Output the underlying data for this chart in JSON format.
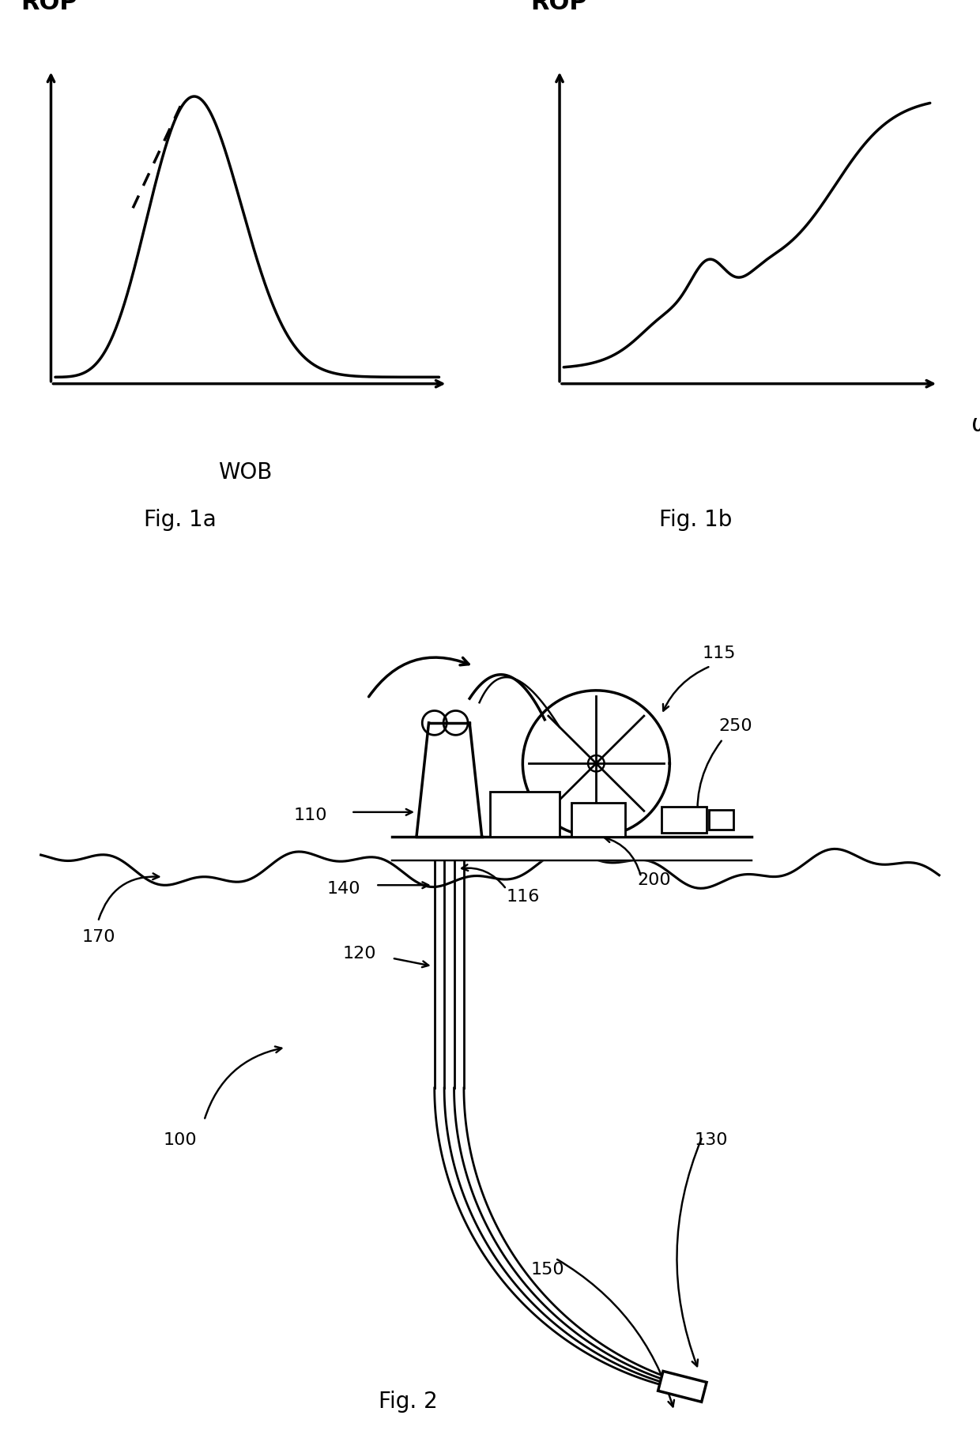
{
  "fig1a_title": "ROP",
  "fig1a_xlabel": "WOB",
  "fig1b_title": "ROP",
  "fig1b_xlabel": "ω",
  "fig1a_caption": "Fig. 1a",
  "fig1b_caption": "Fig. 1b",
  "fig2_caption": "Fig. 2",
  "background_color": "#ffffff",
  "line_color": "#000000",
  "line_width": 2.5,
  "font_size_rop": 22,
  "font_size_axis_label": 20,
  "font_size_caption": 20,
  "font_size_number": 16
}
